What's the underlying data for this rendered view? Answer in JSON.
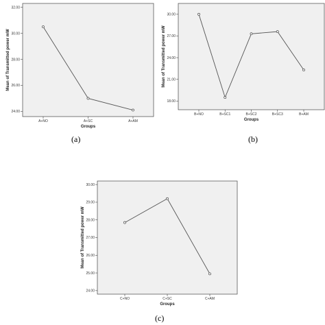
{
  "chart_data": [
    {
      "type": "line",
      "caption": "(a)",
      "xlabel": "Groups",
      "ylabel": "Mean of Transmitted power mW",
      "categories": [
        "A+NO",
        "A+SC",
        "A+AM"
      ],
      "values": [
        30.5,
        25.0,
        24.1
      ],
      "yticks": [
        "24.00",
        "26.00",
        "28.00",
        "30.00",
        "32.00"
      ],
      "ylim": [
        23.6,
        32.3
      ],
      "grid": false
    },
    {
      "type": "line",
      "caption": "(b)",
      "xlabel": "Groups",
      "ylabel": "Mean of Transmitted power mW",
      "categories": [
        "B+NO",
        "B+SC1",
        "B+SC2",
        "B+SC3",
        "B+AM"
      ],
      "values": [
        30.0,
        18.5,
        27.3,
        27.6,
        22.3
      ],
      "yticks": [
        "18.00",
        "21.00",
        "24.00",
        "27.00",
        "30.00"
      ],
      "ylim": [
        16.8,
        31.5
      ],
      "grid": false
    },
    {
      "type": "line",
      "caption": "(c)",
      "xlabel": "Groups",
      "ylabel": "Mean of Transmitted power mW",
      "categories": [
        "C+NO",
        "C+SC",
        "C+AM"
      ],
      "values": [
        27.85,
        29.2,
        24.95
      ],
      "yticks": [
        "24.00",
        "25.00",
        "26.00",
        "27.00",
        "28.00",
        "29.00",
        "30.00"
      ],
      "ylim": [
        23.8,
        30.2
      ],
      "grid": false
    }
  ]
}
